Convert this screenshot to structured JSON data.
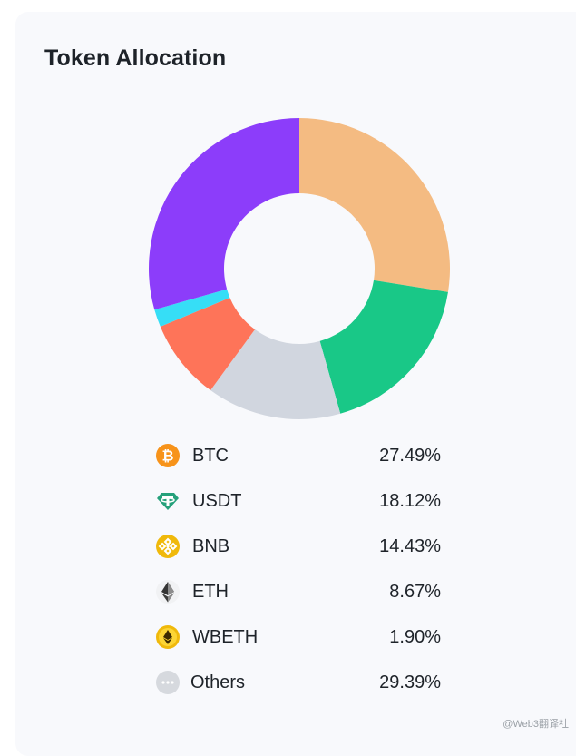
{
  "card": {
    "title": "Token Allocation"
  },
  "colors": {
    "btc": "#f4bb82",
    "usdt": "#19c887",
    "bnb": "#d1d6df",
    "eth": "#fe7459",
    "wbeth": "#36def6",
    "others": "#8c3dfa"
  },
  "chart_data": {
    "type": "pie",
    "style": "donut",
    "title": "Token Allocation",
    "categories": [
      "BTC",
      "USDT",
      "BNB",
      "ETH",
      "WBETH",
      "Others"
    ],
    "values": [
      27.49,
      18.12,
      14.43,
      8.67,
      1.9,
      29.39
    ],
    "unit": "%",
    "colors": [
      "#f4bb82",
      "#19c887",
      "#d1d6df",
      "#fe7459",
      "#36def6",
      "#8c3dfa"
    ],
    "start_angle_deg": 0,
    "direction": "clockwise",
    "legend_position": "bottom"
  },
  "legend": [
    {
      "name": "BTC",
      "value": "27.49%",
      "icon": "btc-icon"
    },
    {
      "name": "USDT",
      "value": "18.12%",
      "icon": "usdt-icon"
    },
    {
      "name": "BNB",
      "value": "14.43%",
      "icon": "bnb-icon"
    },
    {
      "name": "ETH",
      "value": "8.67%",
      "icon": "eth-icon"
    },
    {
      "name": "WBETH",
      "value": "1.90%",
      "icon": "wbeth-icon"
    },
    {
      "name": "Others",
      "value": "29.39%",
      "icon": "others-icon"
    }
  ],
  "watermark": "@Web3翻译社"
}
